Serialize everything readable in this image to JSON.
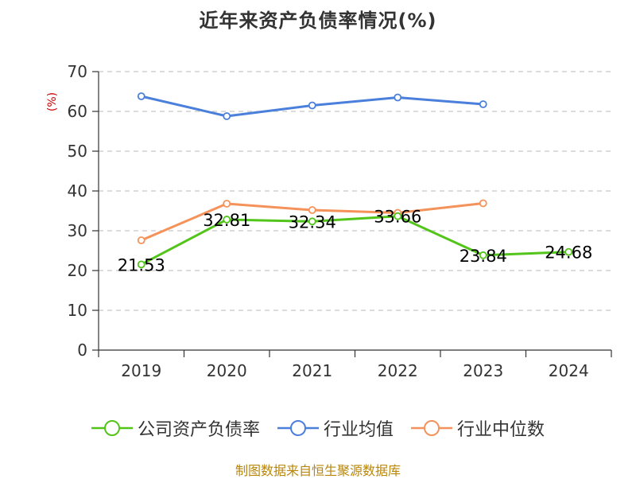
{
  "chart_data": {
    "type": "line",
    "title": "近年来资产负债率情况(%)",
    "ylabel": "(%)",
    "xlabel": "",
    "categories": [
      "2019",
      "2020",
      "2021",
      "2022",
      "2023",
      "2024"
    ],
    "ylim": [
      0,
      70
    ],
    "yticks": [
      "0",
      "10",
      "20",
      "30",
      "40",
      "50",
      "60",
      "70"
    ],
    "grid": true,
    "legend_position": "bottom",
    "series": [
      {
        "name": "公司资产负债率",
        "color": "#52c41a",
        "values": [
          21.53,
          32.81,
          32.34,
          33.66,
          23.84,
          24.68
        ],
        "data_labels": [
          "21.53",
          "32.81",
          "32.34",
          "33.66",
          "23.84",
          "24.68"
        ]
      },
      {
        "name": "行业均值",
        "color": "#4a7fdc",
        "values": [
          63.8,
          58.8,
          61.5,
          63.5,
          61.8,
          null
        ]
      },
      {
        "name": "行业中位数",
        "color": "#f5925a",
        "values": [
          27.6,
          36.8,
          35.2,
          34.5,
          36.9,
          null
        ]
      }
    ]
  },
  "footer": {
    "source": "制图数据来自恒生聚源数据库"
  }
}
